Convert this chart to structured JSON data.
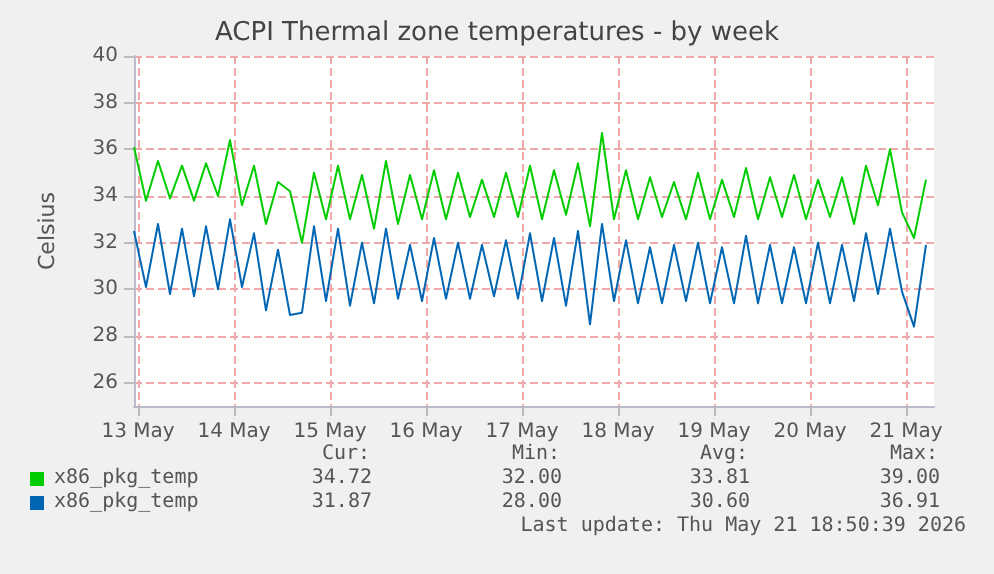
{
  "chart_data": {
    "type": "line",
    "title": "ACPI Thermal zone temperatures - by week",
    "ylabel": "Celsius",
    "x": [
      "2026-05-13T11:00",
      "2026-05-13T14:00",
      "2026-05-13T17:00",
      "2026-05-13T20:00",
      "2026-05-13T23:00",
      "2026-05-14T02:00",
      "2026-05-14T05:00",
      "2026-05-14T08:00",
      "2026-05-14T11:00",
      "2026-05-14T14:00",
      "2026-05-14T17:00",
      "2026-05-14T20:00",
      "2026-05-14T23:00",
      "2026-05-15T02:00",
      "2026-05-15T05:00",
      "2026-05-15T08:00",
      "2026-05-15T11:00",
      "2026-05-15T14:00",
      "2026-05-15T17:00",
      "2026-05-15T20:00",
      "2026-05-15T23:00",
      "2026-05-16T02:00",
      "2026-05-16T05:00",
      "2026-05-16T08:00",
      "2026-05-16T11:00",
      "2026-05-16T14:00",
      "2026-05-16T17:00",
      "2026-05-16T20:00",
      "2026-05-16T23:00",
      "2026-05-17T02:00",
      "2026-05-17T05:00",
      "2026-05-17T08:00",
      "2026-05-17T11:00",
      "2026-05-17T14:00",
      "2026-05-17T17:00",
      "2026-05-17T20:00",
      "2026-05-17T23:00",
      "2026-05-18T02:00",
      "2026-05-18T05:00",
      "2026-05-18T08:00",
      "2026-05-18T11:00",
      "2026-05-18T14:00",
      "2026-05-18T17:00",
      "2026-05-18T20:00",
      "2026-05-18T23:00",
      "2026-05-19T02:00",
      "2026-05-19T05:00",
      "2026-05-19T08:00",
      "2026-05-19T11:00",
      "2026-05-19T14:00",
      "2026-05-19T17:00",
      "2026-05-19T20:00",
      "2026-05-19T23:00",
      "2026-05-20T02:00",
      "2026-05-20T05:00",
      "2026-05-20T08:00",
      "2026-05-20T11:00",
      "2026-05-20T14:00",
      "2026-05-20T17:00",
      "2026-05-20T20:00",
      "2026-05-20T23:00",
      "2026-05-21T02:00",
      "2026-05-21T05:00",
      "2026-05-21T08:00",
      "2026-05-21T11:00",
      "2026-05-21T14:00",
      "2026-05-21T17:00"
    ],
    "series": [
      {
        "name": "x86_pkg_temp",
        "color": "#00cc00",
        "values": [
          36.1,
          33.8,
          35.5,
          33.9,
          35.3,
          33.8,
          35.4,
          34.0,
          36.4,
          33.6,
          35.3,
          32.8,
          34.6,
          34.2,
          32.0,
          35.0,
          33.0,
          35.3,
          33.0,
          34.9,
          32.6,
          35.5,
          32.8,
          34.9,
          33.0,
          35.1,
          33.0,
          35.0,
          33.1,
          34.7,
          33.1,
          35.0,
          33.1,
          35.3,
          33.0,
          35.1,
          33.2,
          35.4,
          32.7,
          36.7,
          33.0,
          35.1,
          33.0,
          34.8,
          33.1,
          34.6,
          33.0,
          35.0,
          33.0,
          34.7,
          33.1,
          35.2,
          33.0,
          34.8,
          33.1,
          34.9,
          33.0,
          34.7,
          33.1,
          34.8,
          32.8,
          35.3,
          33.6,
          36.0,
          33.3,
          32.2,
          34.7
        ]
      },
      {
        "name": "x86_pkg_temp",
        "color": "#0066b3",
        "values": [
          32.5,
          30.1,
          32.8,
          29.8,
          32.6,
          29.7,
          32.7,
          30.0,
          33.0,
          30.1,
          32.4,
          29.1,
          31.7,
          28.9,
          29.0,
          32.7,
          29.5,
          32.6,
          29.3,
          32.0,
          29.4,
          32.6,
          29.6,
          31.9,
          29.5,
          32.2,
          29.6,
          32.0,
          29.6,
          31.9,
          29.7,
          32.1,
          29.6,
          32.4,
          29.5,
          32.2,
          29.3,
          32.5,
          28.5,
          32.8,
          29.5,
          32.1,
          29.4,
          31.8,
          29.4,
          31.9,
          29.5,
          32.0,
          29.4,
          31.8,
          29.4,
          32.3,
          29.4,
          31.9,
          29.4,
          31.8,
          29.4,
          32.0,
          29.4,
          31.9,
          29.5,
          32.4,
          29.8,
          32.6,
          29.9,
          28.4,
          31.9
        ]
      }
    ],
    "xlim": [
      "2026-05-13T11:00",
      "2026-05-21T19:00"
    ],
    "xticks": [
      {
        "value": "2026-05-13T12:00",
        "label": "13 May"
      },
      {
        "value": "2026-05-14T12:00",
        "label": "14 May"
      },
      {
        "value": "2026-05-15T12:00",
        "label": "15 May"
      },
      {
        "value": "2026-05-16T12:00",
        "label": "16 May"
      },
      {
        "value": "2026-05-17T12:00",
        "label": "17 May"
      },
      {
        "value": "2026-05-18T12:00",
        "label": "18 May"
      },
      {
        "value": "2026-05-19T12:00",
        "label": "19 May"
      },
      {
        "value": "2026-05-20T12:00",
        "label": "20 May"
      },
      {
        "value": "2026-05-21T12:00",
        "label": "21 May"
      }
    ],
    "ylim": [
      25,
      40
    ],
    "yticks": [
      26,
      28,
      30,
      32,
      34,
      36,
      38,
      40
    ],
    "grid": true,
    "legend": "bottom left",
    "annotations": [
      "Cur:",
      "Min:",
      "Avg:",
      "Max:",
      "34.72",
      "32.00",
      "33.81",
      "39.00",
      "31.87",
      "28.00",
      "30.60",
      "36.91",
      "Last update: Thu May 21 18:50:39 2026"
    ]
  }
}
